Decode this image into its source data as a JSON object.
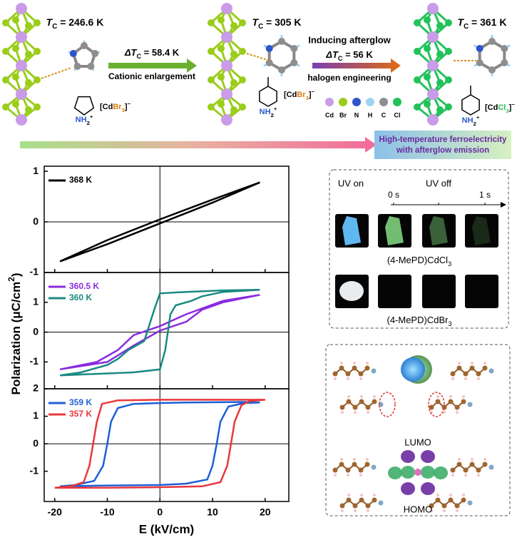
{
  "schematic": {
    "tc_1": {
      "sym": "T",
      "sub": "C",
      "text": " = 246.6 K"
    },
    "dtc_1": {
      "sym": "ΔT",
      "sub": "C",
      "text": " = 58.4 K"
    },
    "step_1": "Cationic enlargement",
    "tc_2": {
      "sym": "T",
      "sub": "C",
      "text": " = 305 K"
    },
    "step_2_top": "Inducing afterglow",
    "dtc_2": {
      "sym": "ΔT",
      "sub": "C",
      "text": " = 56 K"
    },
    "step_2": "halogen engineering",
    "tc_3": {
      "sym": "T",
      "sub": "C",
      "text": " = 361 K"
    },
    "anion_1": {
      "open": "[Cd",
      "hal": "Br",
      "sub": "3",
      "close": "]",
      "sup": "−"
    },
    "anion_2": {
      "open": "[Cd",
      "hal": "Br",
      "sub": "3",
      "close": "]",
      "sup": "−"
    },
    "anion_3": {
      "open": "[Cd",
      "hal": "Cl",
      "sub": "3",
      "close": "]",
      "sup": "−"
    },
    "ammonium": {
      "n": "N",
      "h": "H",
      "sub": "2",
      "sup": "+"
    },
    "atoms": [
      {
        "name": "Cd",
        "color": "#c99be8"
      },
      {
        "name": "Br",
        "color": "#9acd1a"
      },
      {
        "name": "N",
        "color": "#2d57c9"
      },
      {
        "name": "H",
        "color": "#9fd5f0"
      },
      {
        "name": "C",
        "color": "#8e8e8e"
      },
      {
        "name": "Cl",
        "color": "#22c25a"
      }
    ],
    "banner": [
      "High-temperature ferroelectricity",
      "with afterglow emission"
    ]
  },
  "chart_data": [
    {
      "type": "line",
      "xlim": [
        -22,
        24.5
      ],
      "ylim": [
        -1,
        1.1
      ],
      "yticks": [
        -1,
        0,
        1
      ],
      "series": [
        {
          "name": "368 K",
          "color": "#000000",
          "x": [
            -19,
            -10,
            0,
            10,
            19,
            10,
            0,
            -10,
            -19
          ],
          "values": [
            -0.78,
            -0.44,
            -0.03,
            0.38,
            0.78,
            0.44,
            0.05,
            -0.36,
            -0.78
          ]
        }
      ]
    },
    {
      "type": "line",
      "xlim": [
        -22,
        24.5
      ],
      "ylim": [
        -1.9,
        2
      ],
      "yticks": [
        -1,
        0,
        1
      ],
      "ylabel": {
        "a": "Polarization (μC/cm",
        "sup": "2",
        "b": ")"
      },
      "series": [
        {
          "name": "360.5 K",
          "color": "#8a2be2",
          "x": [
            -19,
            -10,
            -5,
            0,
            5,
            8,
            12,
            19,
            12,
            5,
            0,
            -5,
            -8,
            -12,
            -19
          ],
          "values": [
            -1.25,
            -1.0,
            -0.45,
            0.05,
            0.35,
            0.75,
            1.0,
            1.25,
            1.05,
            0.6,
            0.2,
            -0.1,
            -0.6,
            -1.0,
            -1.25
          ]
        },
        {
          "name": "360 K",
          "color": "#1a8a80",
          "x": [
            -19,
            -12,
            -5,
            0,
            1,
            2,
            3,
            6,
            8,
            12,
            19,
            12,
            5,
            0,
            -1,
            -3,
            -6,
            -8,
            -10,
            -15,
            -19
          ],
          "values": [
            -1.45,
            -1.4,
            -1.35,
            -1.25,
            -0.6,
            0.6,
            0.9,
            1.05,
            1.2,
            1.35,
            1.42,
            1.4,
            1.35,
            1.3,
            0.8,
            -0.3,
            -0.6,
            -0.9,
            -1.1,
            -1.35,
            -1.45
          ]
        }
      ]
    },
    {
      "type": "line",
      "xlim": [
        -22,
        24.5
      ],
      "ylim": [
        -2.1,
        2
      ],
      "yticks": [
        -1,
        0,
        1,
        2
      ],
      "xticks": [
        -20,
        -10,
        0,
        10,
        20
      ],
      "xlabel": "E (kV/cm)",
      "series": [
        {
          "name": "359 K",
          "color": "#1f5fd6",
          "x": [
            -19,
            -10,
            0,
            5,
            9,
            10,
            10.8,
            11.5,
            13,
            16,
            19,
            16,
            5,
            0,
            -5,
            -8,
            -9.3,
            -10,
            -10.8,
            -12.5,
            -16,
            -19
          ],
          "values": [
            -1.55,
            -1.52,
            -1.5,
            -1.45,
            -1.3,
            -0.8,
            0,
            0.8,
            1.35,
            1.48,
            1.5,
            1.52,
            1.5,
            1.48,
            1.45,
            1.3,
            0.8,
            0,
            -0.8,
            -1.35,
            -1.5,
            -1.55
          ]
        },
        {
          "name": "357 K",
          "color": "#e8383d",
          "x": [
            -20,
            -10,
            0,
            8,
            11.5,
            12.8,
            13.5,
            14.2,
            15.5,
            17,
            20,
            15,
            0,
            -8,
            -11,
            -12,
            -12.7,
            -13.4,
            -14.5,
            -17,
            -20
          ],
          "values": [
            -1.6,
            -1.6,
            -1.58,
            -1.55,
            -1.4,
            -0.8,
            0,
            0.8,
            1.4,
            1.55,
            1.6,
            1.6,
            1.6,
            1.58,
            1.45,
            0.8,
            0,
            -0.8,
            -1.4,
            -1.55,
            -1.6
          ]
        }
      ]
    }
  ],
  "photos": {
    "uv_on": "UV on",
    "uv_off": "UV off",
    "t_start": "0 s",
    "t_end": "1 s",
    "sample_1": {
      "text": "(4-MePD)CdCl",
      "sub": "3"
    },
    "sample_2": {
      "text": "(4-MePD)CdBr",
      "sub": "3"
    }
  },
  "orbitals": {
    "lumo": "LUMO",
    "homo": "HOMO"
  }
}
